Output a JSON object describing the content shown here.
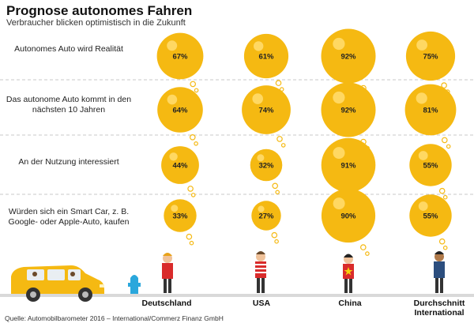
{
  "chart_data": {
    "type": "bubble-matrix",
    "title": "Prognose autonomes Fahren",
    "subtitle": "Verbraucher blicken optimistisch in die Zukunft",
    "countries": [
      "Deutschland",
      "USA",
      "China",
      "Durchschnitt International"
    ],
    "rows": [
      {
        "label": "Autonomes Auto wird Realität",
        "values": [
          67,
          61,
          92,
          75
        ],
        "labels": [
          "67%",
          "61%",
          "92%",
          "75%"
        ]
      },
      {
        "label": "Das autonome Auto kommt in den nächsten 10 Jahren",
        "values": [
          64,
          74,
          92,
          81
        ],
        "labels": [
          "64%",
          "74%",
          "92%",
          "81%"
        ]
      },
      {
        "label": "An der Nutzung interessiert",
        "values": [
          44,
          32,
          91,
          55
        ],
        "labels": [
          "44%",
          "32%",
          "91%",
          "55%"
        ]
      },
      {
        "label": "Würden sich ein Smart Car, z. B. Google- oder Apple-Auto, kaufen",
        "values": [
          33,
          27,
          90,
          55
        ],
        "labels": [
          "33%",
          "27%",
          "90%",
          "55%"
        ]
      }
    ],
    "unit": "%"
  },
  "source": "Quelle: Automobilbarometer 2016 – International/Commerz Finanz GmbH",
  "colors": {
    "bubble": "#f5b912",
    "bubble_highlight": "#ffd862",
    "divider": "#c9c9c9",
    "road": "#d9d9d9",
    "car": "#f5b912"
  }
}
